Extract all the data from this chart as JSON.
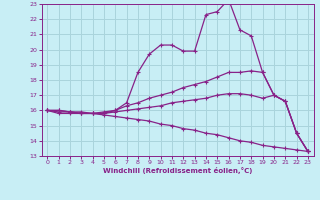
{
  "xlabel": "Windchill (Refroidissement éolien,°C)",
  "background_color": "#c8eef5",
  "grid_color": "#aad4dc",
  "line_color": "#882288",
  "xlim": [
    -0.5,
    23.5
  ],
  "ylim": [
    13,
    23
  ],
  "xticks": [
    0,
    1,
    2,
    3,
    4,
    5,
    6,
    7,
    8,
    9,
    10,
    11,
    12,
    13,
    14,
    15,
    16,
    17,
    18,
    19,
    20,
    21,
    22,
    23
  ],
  "yticks": [
    13,
    14,
    15,
    16,
    17,
    18,
    19,
    20,
    21,
    22,
    23
  ],
  "curve1_x": [
    0,
    1,
    2,
    3,
    4,
    5,
    6,
    7,
    8,
    9,
    10,
    11,
    12,
    13,
    14,
    15,
    16,
    17,
    18,
    19,
    20,
    21,
    22,
    23
  ],
  "curve1_y": [
    16.0,
    15.8,
    15.8,
    15.8,
    15.8,
    15.8,
    16.0,
    16.5,
    18.5,
    19.7,
    20.3,
    20.3,
    19.9,
    19.9,
    22.3,
    22.5,
    23.3,
    21.3,
    20.9,
    18.5,
    17.0,
    16.6,
    14.5,
    13.3
  ],
  "curve2_x": [
    0,
    1,
    2,
    3,
    4,
    5,
    6,
    7,
    8,
    9,
    10,
    11,
    12,
    13,
    14,
    15,
    16,
    17,
    18,
    19,
    20,
    21,
    22,
    23
  ],
  "curve2_y": [
    16.0,
    15.9,
    15.9,
    15.8,
    15.8,
    15.9,
    16.0,
    16.3,
    16.5,
    16.8,
    17.0,
    17.2,
    17.5,
    17.7,
    17.9,
    18.2,
    18.5,
    18.5,
    18.6,
    18.5,
    17.0,
    16.6,
    14.5,
    13.3
  ],
  "curve3_x": [
    0,
    1,
    2,
    3,
    4,
    5,
    6,
    7,
    8,
    9,
    10,
    11,
    12,
    13,
    14,
    15,
    16,
    17,
    18,
    19,
    20,
    21,
    22,
    23
  ],
  "curve3_y": [
    16.0,
    16.0,
    15.9,
    15.9,
    15.8,
    15.8,
    15.9,
    16.0,
    16.1,
    16.2,
    16.3,
    16.5,
    16.6,
    16.7,
    16.8,
    17.0,
    17.1,
    17.1,
    17.0,
    16.8,
    17.0,
    16.6,
    14.5,
    13.3
  ],
  "curve4_x": [
    0,
    1,
    2,
    3,
    4,
    5,
    6,
    7,
    8,
    9,
    10,
    11,
    12,
    13,
    14,
    15,
    16,
    17,
    18,
    19,
    20,
    21,
    22,
    23
  ],
  "curve4_y": [
    16.0,
    16.0,
    15.9,
    15.8,
    15.8,
    15.7,
    15.6,
    15.5,
    15.4,
    15.3,
    15.1,
    15.0,
    14.8,
    14.7,
    14.5,
    14.4,
    14.2,
    14.0,
    13.9,
    13.7,
    13.6,
    13.5,
    13.4,
    13.3
  ]
}
